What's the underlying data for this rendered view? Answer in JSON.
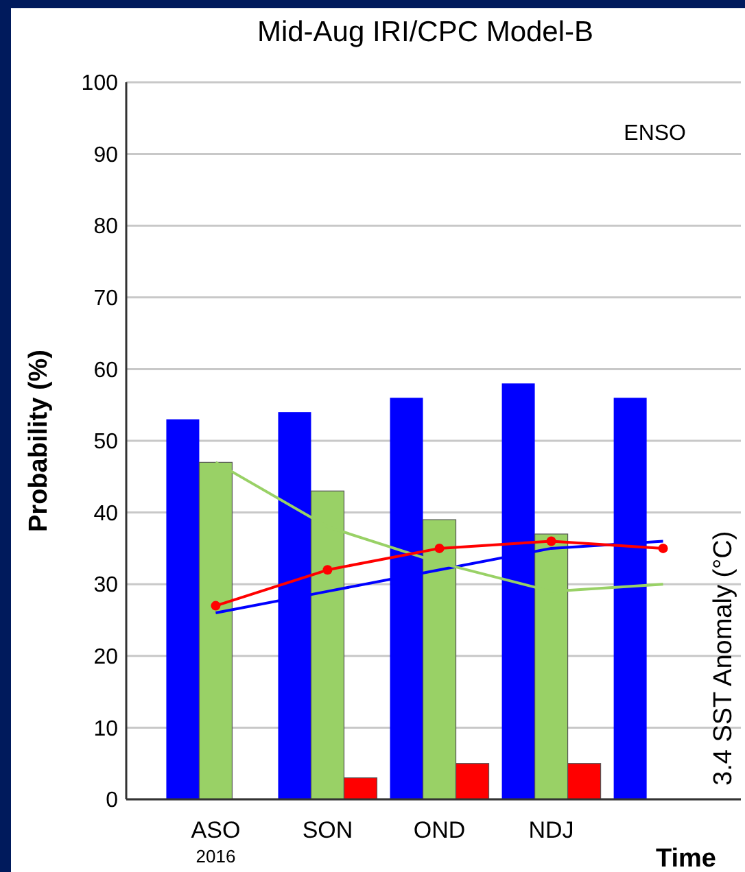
{
  "chart_data": {
    "type": "bar",
    "title": "Mid-Aug IRI/CPC Model-B",
    "xlabel": "Time",
    "ylabel": "Probability (%)",
    "y2label": "3.4 SST Anomaly (°C)",
    "categories": [
      "ASO",
      "SON",
      "OND",
      "NDJ",
      null
    ],
    "series": [
      {
        "color": "#0000ff",
        "values": [
          53,
          54,
          56,
          58,
          56
        ]
      },
      {
        "color": "#99d166",
        "values": [
          47,
          43,
          39,
          37,
          null
        ]
      },
      {
        "color": "#ff0000",
        "values": [
          0,
          3,
          5,
          5,
          null
        ]
      },
      {
        "type": "line",
        "color": "#0000ff",
        "marker": "none",
        "values": [
          26,
          29,
          32,
          35,
          36
        ]
      },
      {
        "type": "line",
        "color": "#99d166",
        "marker": "none",
        "values": [
          47,
          38,
          33,
          29,
          30
        ]
      },
      {
        "type": "line",
        "color": "#ff0000",
        "marker": "circle",
        "values": [
          27,
          32,
          35,
          36,
          35
        ]
      }
    ],
    "annotations": [
      "ENSO",
      "2016"
    ],
    "ylim": [
      0,
      100
    ],
    "yticks": [
      0,
      10,
      20,
      30,
      40,
      50,
      60,
      70,
      80,
      90,
      100
    ],
    "grid": "y"
  }
}
